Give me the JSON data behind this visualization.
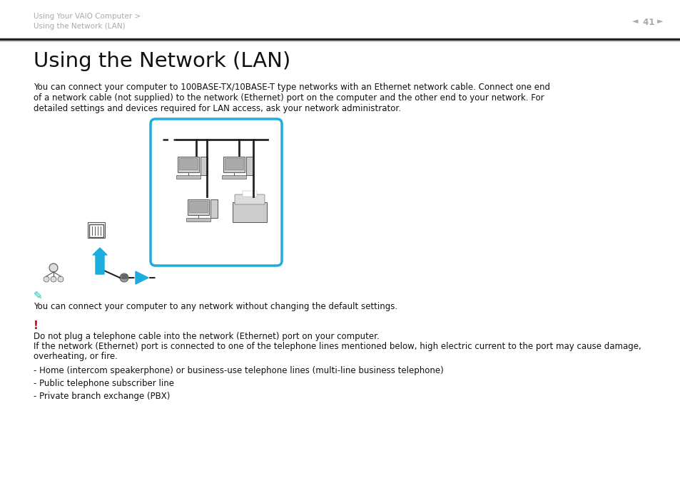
{
  "bg_color": "#ffffff",
  "header_text1": "Using Your VAIO Computer >",
  "header_text2": "Using the Network (LAN)",
  "page_number": "41",
  "title": "Using the Network (LAN)",
  "body_line1": "You can connect your computer to 100BASE-TX/10BASE-T type networks with an Ethernet network cable. Connect one end",
  "body_line2": "of a network cable (not supplied) to the network (Ethernet) port on the computer and the other end to your network. For",
  "body_line3": "detailed settings and devices required for LAN access, ask your network administrator.",
  "note_text": "You can connect your computer to any network without changing the default settings.",
  "warn_line1": "Do not plug a telephone cable into the network (Ethernet) port on your computer.",
  "warn_line2": "If the network (Ethernet) port is connected to one of the telephone lines mentioned below, high electric current to the port may cause damage,",
  "warn_line3": "overheating, or fire.",
  "bullet1": "- Home (intercom speakerphone) or business-use telephone lines (multi-line business telephone)",
  "bullet2": "- Public telephone subscriber line",
  "bullet3": "- Private branch exchange (PBX)",
  "header_color": "#aaaaaa",
  "sep_color_dark": "#222222",
  "sep_color_light": "#cccccc",
  "title_color": "#111111",
  "body_color": "#111111",
  "cyan_color": "#1aadde",
  "red_color": "#cc0000",
  "note_icon_color": "#22bbaa",
  "device_fill": "#cccccc",
  "device_edge": "#555555",
  "screen_fill": "#aaaaaa",
  "diagram_line": "#222222",
  "body_fontsize": 8.5,
  "header_fontsize": 7.5,
  "title_fontsize": 21
}
